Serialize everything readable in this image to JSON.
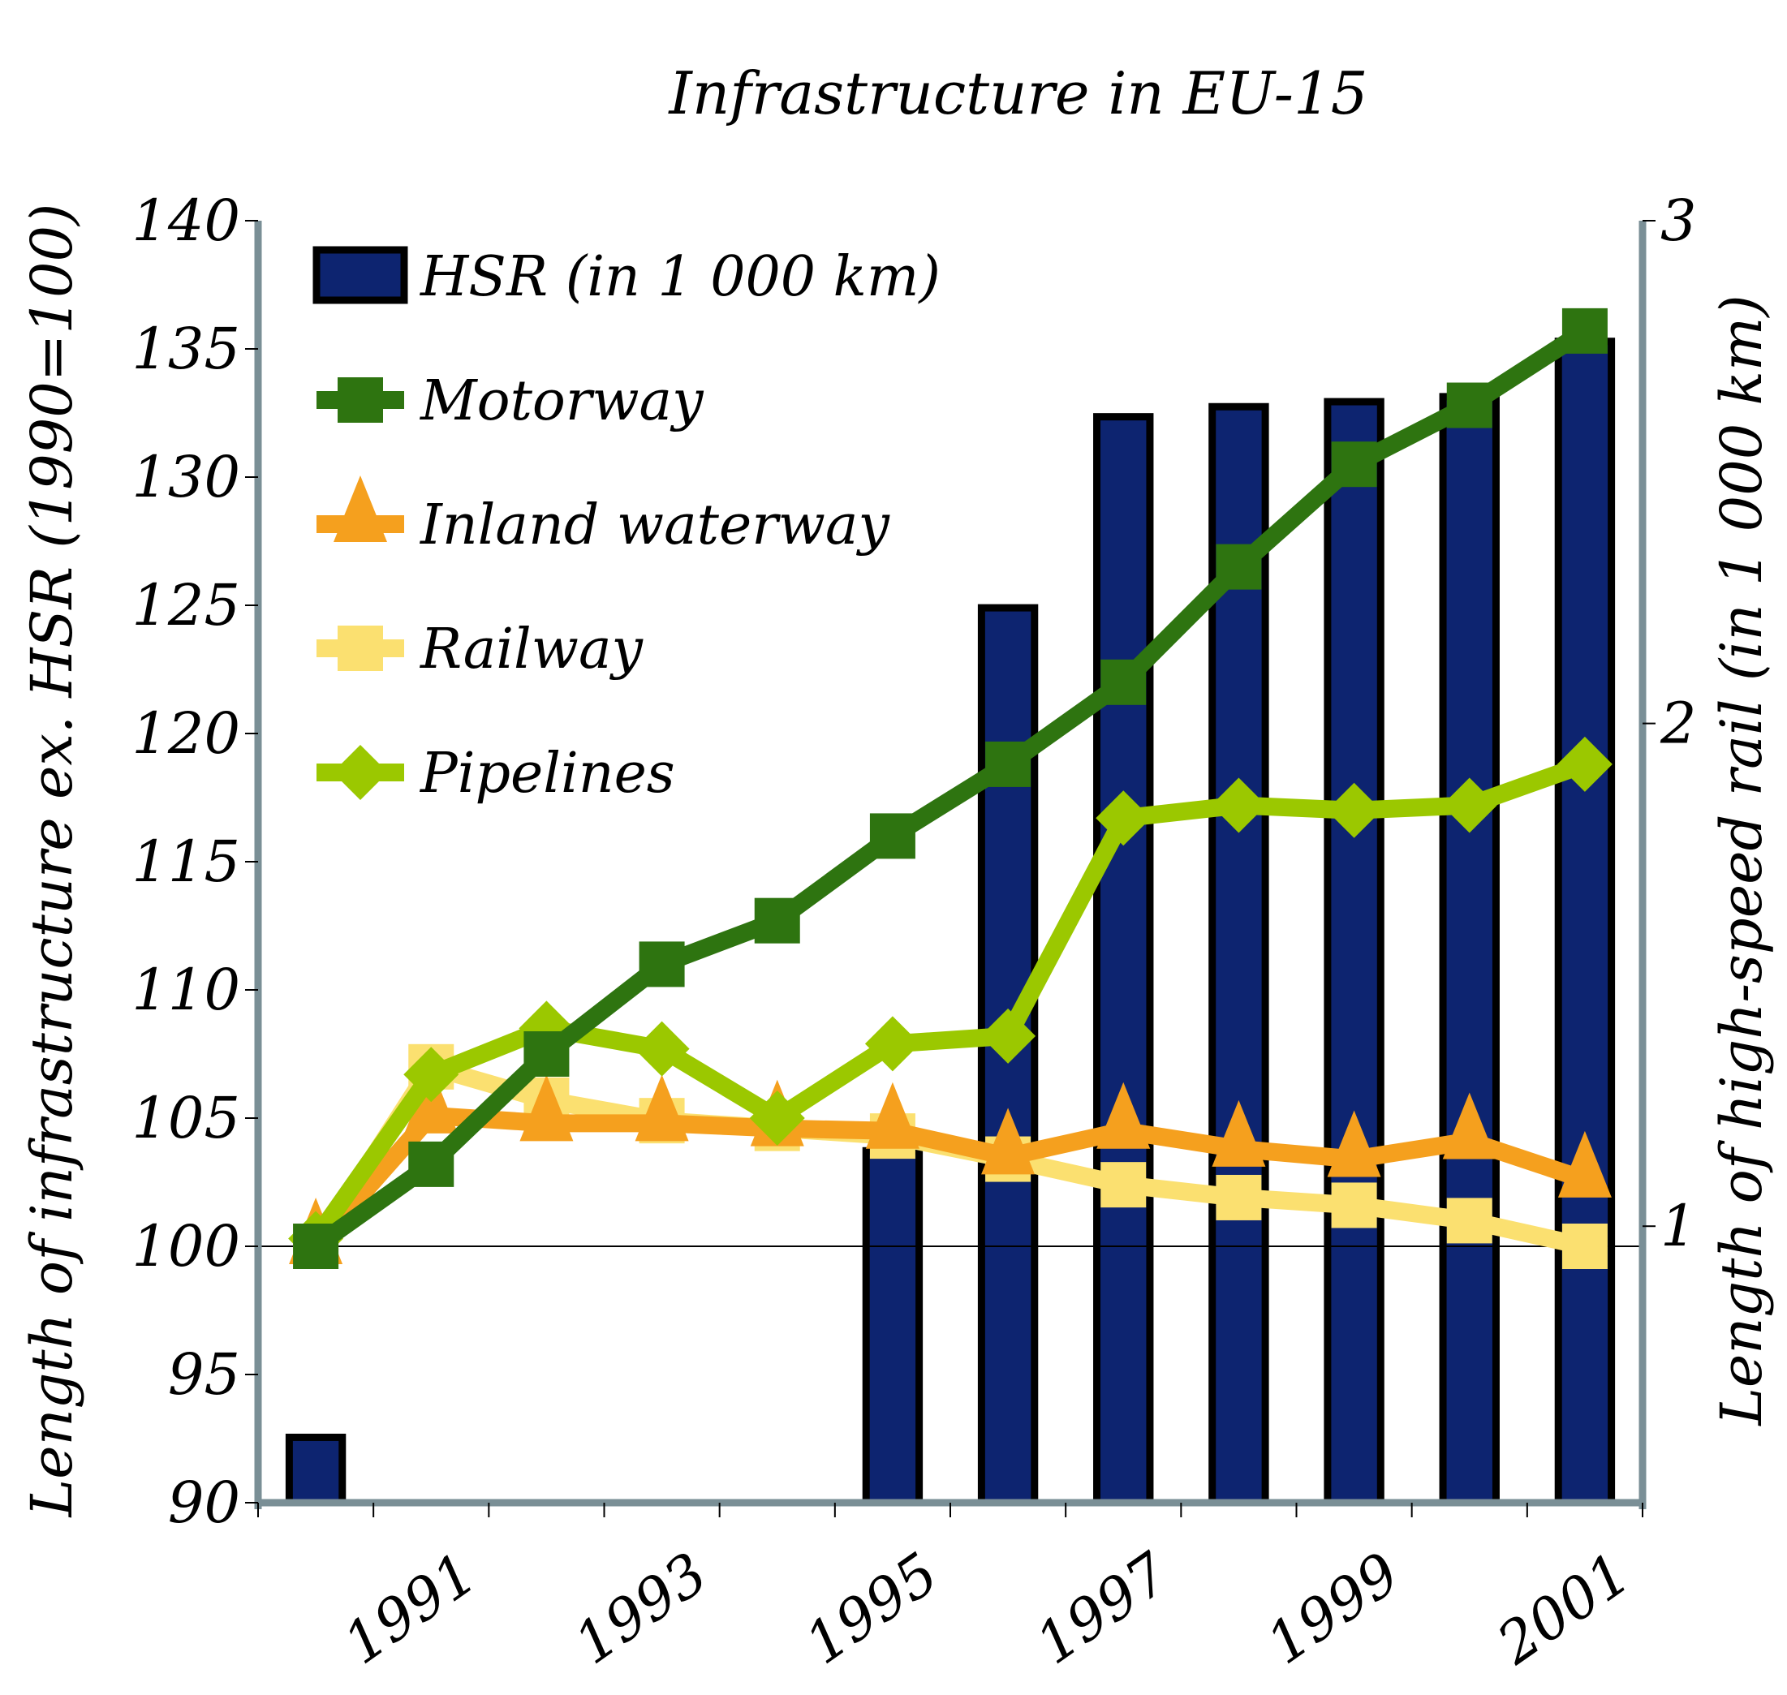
{
  "chart_data": {
    "type": "bar+line",
    "title": "Infrastructure in EU-15",
    "ylabel_left": "Length of infrastructure ex. HSR (1990=100)",
    "ylabel_right": "Length of high-speed rail (in 1 000 km)",
    "ylim_left": [
      90,
      140
    ],
    "yticks_left": [
      "90",
      "95",
      "100",
      "105",
      "110",
      "115",
      "120",
      "125",
      "130",
      "135",
      "140"
    ],
    "ylim_right": [
      0.45,
      3
    ],
    "yticks_right": [
      "1",
      "2",
      "3"
    ],
    "categories": [
      "1990",
      "1991",
      "1992",
      "1993",
      "1994",
      "1995",
      "1996",
      "1997",
      "1998",
      "1999",
      "2000",
      "2001"
    ],
    "xtick_labels": [
      "1991",
      "1993",
      "1995",
      "1997",
      "1999",
      "2001"
    ],
    "legend_position": "top-left",
    "reference_line": 100,
    "series": [
      {
        "name": "HSR (in 1 000 km)",
        "type": "bar",
        "axis": "right",
        "color": "#0d2470",
        "values": [
          0.58,
          null,
          null,
          null,
          null,
          1.15,
          2.23,
          2.61,
          2.63,
          2.64,
          2.65,
          2.76
        ]
      },
      {
        "name": "Motorway",
        "type": "line",
        "marker": "square",
        "color": "#2e7410",
        "values": [
          100,
          103.2,
          107.5,
          111,
          112.7,
          116,
          118.8,
          122,
          126.5,
          130.5,
          132.8,
          135.7
        ]
      },
      {
        "name": "Inland waterway",
        "type": "line",
        "marker": "triangle",
        "color": "#f5a01e",
        "values": [
          100,
          105.1,
          104.8,
          104.8,
          104.6,
          104.5,
          103.5,
          104.5,
          103.8,
          103.4,
          104.1,
          102.6
        ]
      },
      {
        "name": "Railway",
        "type": "line",
        "marker": "square",
        "color": "#fbe070",
        "values": [
          100,
          107,
          105.7,
          104.9,
          104.6,
          104.3,
          103.4,
          102.4,
          101.9,
          101.6,
          101,
          100
        ]
      },
      {
        "name": "Pipelines",
        "type": "line",
        "marker": "diamond",
        "color": "#9bc800",
        "values": [
          100.3,
          106.7,
          108.5,
          107.7,
          105,
          107.9,
          108.2,
          116.7,
          117.2,
          117,
          117.2,
          118.8
        ]
      }
    ]
  }
}
